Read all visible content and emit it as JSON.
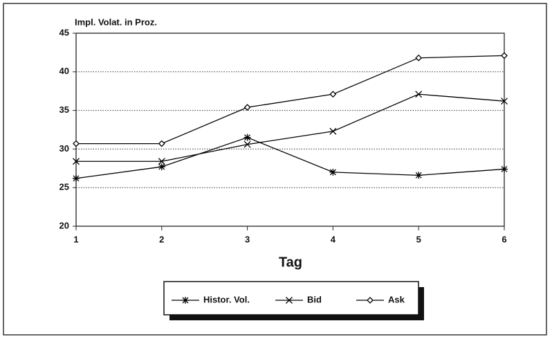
{
  "chart_data": {
    "type": "line",
    "ylabel": "Impl. Volat. in Proz.",
    "xlabel": "Tag",
    "x": [
      1,
      2,
      3,
      4,
      5,
      6
    ],
    "xlim": [
      1,
      6
    ],
    "xticks": [
      1,
      2,
      3,
      4,
      5,
      6
    ],
    "ylim": [
      20,
      45
    ],
    "yticks": [
      20,
      25,
      30,
      35,
      40,
      45
    ],
    "grid": true,
    "legend": "bottom",
    "series": [
      {
        "name": "Histor. Vol.",
        "color": "#000000",
        "marker": "asterisk",
        "values": [
          26.2,
          27.7,
          31.5,
          27.0,
          26.6,
          27.4
        ]
      },
      {
        "name": "Bid",
        "color": "#000000",
        "marker": "x",
        "values": [
          28.4,
          28.4,
          30.6,
          32.3,
          37.1,
          36.2
        ]
      },
      {
        "name": "Ask",
        "color": "#000000",
        "marker": "diamond",
        "values": [
          30.7,
          30.7,
          35.4,
          37.1,
          41.8,
          42.1
        ]
      }
    ]
  }
}
